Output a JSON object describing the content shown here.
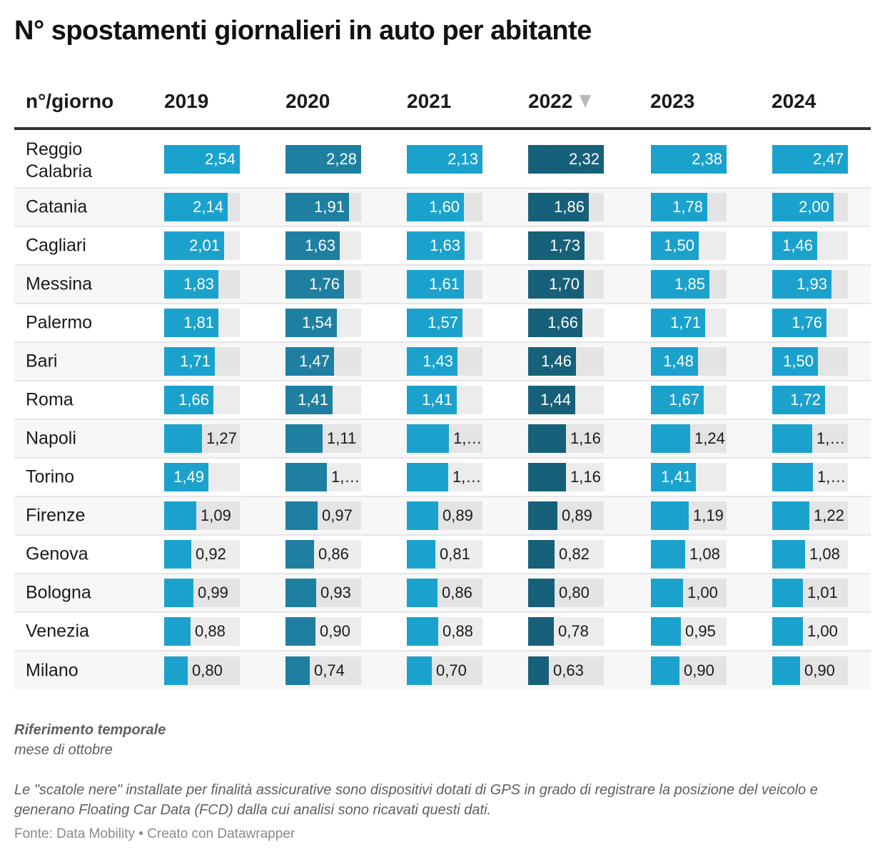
{
  "title": "N° spostamenti giornalieri in auto per abitante",
  "chart_data": {
    "type": "table",
    "title": "N° spostamenti giornalieri in auto per abitante",
    "row_header": "n°/giorno",
    "columns": [
      "2019",
      "2020",
      "2021",
      "2022",
      "2023",
      "2024"
    ],
    "sorted_column": "2022",
    "sort_direction": "descending",
    "column_colors": [
      "#1ba2cc",
      "#1f7fa0",
      "#1ba2cc",
      "#17607a",
      "#1ba2cc",
      "#1ba2cc"
    ],
    "bar_background": "#e6e6e6",
    "rows": [
      {
        "city": "Reggio Calabria",
        "values": [
          2.54,
          2.28,
          2.13,
          2.32,
          2.38,
          2.47
        ],
        "labels": [
          "2,54",
          "2,28",
          "2,13",
          "2,32",
          "2,38",
          "2,47"
        ]
      },
      {
        "city": "Catania",
        "values": [
          2.14,
          1.91,
          1.6,
          1.86,
          1.78,
          2.0
        ],
        "labels": [
          "2,14",
          "1,91",
          "1,60",
          "1,86",
          "1,78",
          "2,00"
        ]
      },
      {
        "city": "Cagliari",
        "values": [
          2.01,
          1.63,
          1.63,
          1.73,
          1.5,
          1.46
        ],
        "labels": [
          "2,01",
          "1,63",
          "1,63",
          "1,73",
          "1,50",
          "1,46"
        ]
      },
      {
        "city": "Messina",
        "values": [
          1.83,
          1.76,
          1.61,
          1.7,
          1.85,
          1.93
        ],
        "labels": [
          "1,83",
          "1,76",
          "1,61",
          "1,70",
          "1,85",
          "1,93"
        ]
      },
      {
        "city": "Palermo",
        "values": [
          1.81,
          1.54,
          1.57,
          1.66,
          1.71,
          1.76
        ],
        "labels": [
          "1,81",
          "1,54",
          "1,57",
          "1,66",
          "1,71",
          "1,76"
        ]
      },
      {
        "city": "Bari",
        "values": [
          1.71,
          1.47,
          1.43,
          1.46,
          1.48,
          1.5
        ],
        "labels": [
          "1,71",
          "1,47",
          "1,43",
          "1,46",
          "1,48",
          "1,50"
        ]
      },
      {
        "city": "Roma",
        "values": [
          1.66,
          1.41,
          1.41,
          1.44,
          1.67,
          1.72
        ],
        "labels": [
          "1,66",
          "1,41",
          "1,41",
          "1,44",
          "1,67",
          "1,72"
        ]
      },
      {
        "city": "Napoli",
        "values": [
          1.27,
          1.11,
          1.19,
          1.16,
          1.24,
          1.3
        ],
        "labels": [
          "1,27",
          "1,11",
          "1,…",
          "1,16",
          "1,24",
          "1,…"
        ]
      },
      {
        "city": "Torino",
        "values": [
          1.49,
          1.25,
          1.16,
          1.16,
          1.41,
          1.32
        ],
        "labels": [
          "1,49",
          "1,…",
          "1,…",
          "1,16",
          "1,41",
          "1,…"
        ]
      },
      {
        "city": "Firenze",
        "values": [
          1.09,
          0.97,
          0.89,
          0.89,
          1.19,
          1.22
        ],
        "labels": [
          "1,09",
          "0,97",
          "0,89",
          "0,89",
          "1,19",
          "1,22"
        ]
      },
      {
        "city": "Genova",
        "values": [
          0.92,
          0.86,
          0.81,
          0.82,
          1.08,
          1.08
        ],
        "labels": [
          "0,92",
          "0,86",
          "0,81",
          "0,82",
          "1,08",
          "1,08"
        ]
      },
      {
        "city": "Bologna",
        "values": [
          0.99,
          0.93,
          0.86,
          0.8,
          1.0,
          1.01
        ],
        "labels": [
          "0,99",
          "0,93",
          "0,86",
          "0,80",
          "1,00",
          "1,01"
        ]
      },
      {
        "city": "Venezia",
        "values": [
          0.88,
          0.9,
          0.88,
          0.78,
          0.95,
          1.0
        ],
        "labels": [
          "0,88",
          "0,90",
          "0,88",
          "0,78",
          "0,95",
          "1,00"
        ]
      },
      {
        "city": "Milano",
        "values": [
          0.8,
          0.74,
          0.7,
          0.63,
          0.9,
          0.9
        ],
        "labels": [
          "0,80",
          "0,74",
          "0,70",
          "0,63",
          "0,90",
          "0,90"
        ]
      }
    ],
    "inside_label_min": [
      1.3,
      1.3,
      1.25,
      1.3,
      1.3,
      1.35
    ],
    "inside_label_override": {
      "Torino": [
        true,
        false,
        false,
        false,
        true,
        false
      ]
    }
  },
  "notes": {
    "heading": "Riferimento temporale",
    "subheading": "mese di ottobre",
    "text": "Le \"scatole nere\" installate per finalità assicurative sono dispositivi dotati di GPS in grado di registrare la posizione del veicolo e generano Floating Car Data (FCD) dalla cui analisi sono ricavati questi dati."
  },
  "source": "Fonte: Data Mobility • Creato con Datawrapper"
}
